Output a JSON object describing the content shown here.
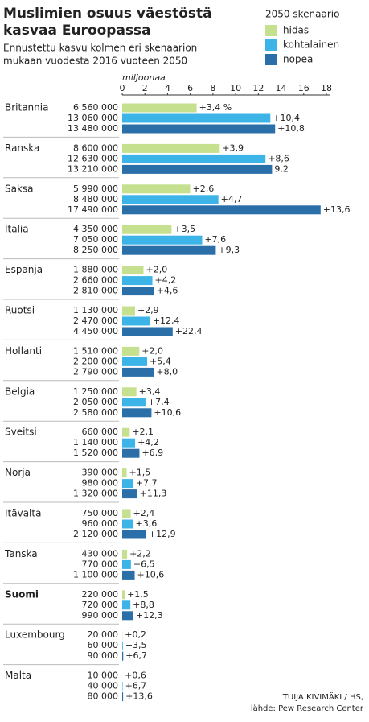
{
  "chart_data": {
    "type": "bar",
    "orientation": "horizontal",
    "title": [
      "Muslimien osuus väestöstä",
      "kasvaa Euroopassa"
    ],
    "subtitle": [
      "Ennustettu kasvu kolmen eri skenaarion",
      "mukaan vuodesta 2016 vuoteen 2050"
    ],
    "legend_title": "2050 skenaario",
    "axis_label": "miljoonaa",
    "xlim": [
      0,
      18
    ],
    "xticks": [
      0,
      2,
      4,
      6,
      8,
      10,
      12,
      14,
      16,
      18
    ],
    "bold_category_index": 12,
    "categories": [
      "Britannia",
      "Ranska",
      "Saksa",
      "Italia",
      "Espanja",
      "Ruotsi",
      "Hollanti",
      "Belgia",
      "Sveitsi",
      "Norja",
      "Itävalta",
      "Tanska",
      "Suomi",
      "Luxembourg",
      "Malta"
    ],
    "series": [
      {
        "name": "hidas",
        "color": "#c5e08f",
        "values": [
          6.56,
          8.6,
          5.99,
          4.35,
          1.88,
          1.13,
          1.51,
          1.25,
          0.66,
          0.39,
          0.75,
          0.43,
          0.22,
          0.02,
          0.01
        ],
        "value_labels": [
          "6 560 000",
          "8 600 000",
          "5 990 000",
          "4 350 000",
          "1 880 000",
          "1 130 000",
          "1 510 000",
          "1 250 000",
          "660 000",
          "390 000",
          "750 000",
          "430 000",
          "220 000",
          "20 000",
          "10 000"
        ],
        "share_labels": [
          "+3,4 %",
          "+3,9",
          "+2,6",
          "+3,5",
          "+2,0",
          "+2,9",
          "+2,0",
          "+3,4",
          "+2,1",
          "+1,5",
          "+2,4",
          "+2,2",
          "+1,5",
          "+0,2",
          "+0,6"
        ]
      },
      {
        "name": "kohtalainen",
        "color": "#3db4e8",
        "values": [
          13.06,
          12.63,
          8.48,
          7.05,
          2.66,
          2.47,
          2.2,
          2.05,
          1.14,
          0.98,
          0.96,
          0.77,
          0.72,
          0.06,
          0.04
        ],
        "value_labels": [
          "13 060 000",
          "12 630 000",
          "8 480 000",
          "7 050 000",
          "2 660 000",
          "2 470 000",
          "2 200 000",
          "2 050 000",
          "1 140 000",
          "980 000",
          "960 000",
          "770 000",
          "720 000",
          "60 000",
          "40 000"
        ],
        "share_labels": [
          "+10,4",
          "+8,6",
          "+4,7",
          "+7,6",
          "+4,2",
          "+12,4",
          "+5,4",
          "+7,4",
          "+4,2",
          "+7,7",
          "+3,6",
          "+6,5",
          "+8,8",
          "+3,5",
          "+6,7"
        ]
      },
      {
        "name": "nopea",
        "color": "#2a6fa8",
        "values": [
          13.48,
          13.21,
          17.49,
          8.25,
          2.81,
          4.45,
          2.79,
          2.58,
          1.52,
          1.32,
          2.12,
          1.1,
          0.99,
          0.09,
          0.08
        ],
        "value_labels": [
          "13 480 000",
          "13 210 000",
          "17 490 000",
          "8 250 000",
          "2 810 000",
          "4 450 000",
          "2 790 000",
          "2 580 000",
          "1 520 000",
          "1 320 000",
          "2 120 000",
          "1 100 000",
          "990 000",
          "90 000",
          "80 000"
        ],
        "share_labels": [
          "+10,8",
          "9,2",
          "+13,6",
          "+9,3",
          "+4,6",
          "+22,4",
          "+8,0",
          "+10,6",
          "+6,9",
          "+11,3",
          "+12,9",
          "+10,6",
          "+12,3",
          "+6,7",
          "+13,6"
        ]
      }
    ],
    "source": [
      "TUIJA KIVIMÄKI / HS,",
      "lähde: Pew Research Center"
    ]
  }
}
